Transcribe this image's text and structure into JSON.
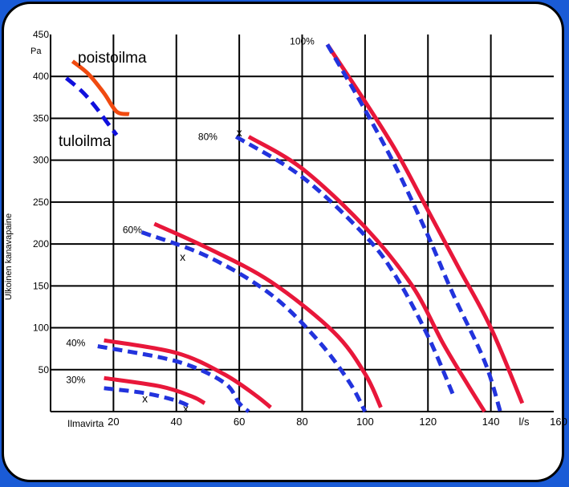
{
  "chart_data": {
    "type": "line",
    "ylabel": "Ulkoinen kanavapaine",
    "yunit": "Pa",
    "xlabel": "Ilmavirta",
    "xunit": "l/s",
    "xlim": [
      0,
      160
    ],
    "ylim": [
      0,
      450
    ],
    "xticks": [
      20,
      40,
      60,
      80,
      100,
      120,
      140,
      160
    ],
    "yticks": [
      50,
      100,
      150,
      200,
      250,
      300,
      350,
      400,
      450
    ],
    "grid": true,
    "colors": {
      "poistoilma": "#e8173a",
      "tuloilma": "#2233dd",
      "legend_poistoilma": "#f04a10",
      "legend_tuloilma": "#1010dd"
    },
    "legend": [
      {
        "label": "poistoilma",
        "color": "#f04a10",
        "style": "solid"
      },
      {
        "label": "tuloilma",
        "color": "#1010dd",
        "style": "dashed"
      }
    ],
    "legend_lines": [
      {
        "label": "poistoilma",
        "points": [
          [
            7,
            418
          ],
          [
            12,
            403
          ],
          [
            17,
            380
          ],
          [
            21,
            358
          ],
          [
            25,
            355
          ]
        ],
        "style": "solid"
      },
      {
        "label": "tuloilma",
        "points": [
          [
            5,
            398
          ],
          [
            10,
            382
          ],
          [
            14,
            365
          ],
          [
            18,
            345
          ],
          [
            21,
            330
          ]
        ],
        "style": "dashed"
      }
    ],
    "series": [
      {
        "label": "100%",
        "fan": "poistoilma",
        "style": "solid",
        "points": [
          [
            88,
            438
          ],
          [
            100,
            370
          ],
          [
            110,
            310
          ],
          [
            120,
            240
          ],
          [
            130,
            170
          ],
          [
            140,
            100
          ],
          [
            150,
            10
          ]
        ]
      },
      {
        "label": "100%",
        "fan": "tuloilma",
        "style": "dashed",
        "points": [
          [
            88,
            438
          ],
          [
            100,
            360
          ],
          [
            110,
            290
          ],
          [
            120,
            210
          ],
          [
            128,
            140
          ],
          [
            138,
            60
          ],
          [
            143,
            0
          ]
        ]
      },
      {
        "label": "80%",
        "fan": "poistoilma",
        "style": "solid",
        "points": [
          [
            63,
            328
          ],
          [
            80,
            290
          ],
          [
            100,
            220
          ],
          [
            115,
            150
          ],
          [
            125,
            80
          ],
          [
            133,
            30
          ],
          [
            138,
            0
          ]
        ]
      },
      {
        "label": "80%",
        "fan": "tuloilma",
        "style": "dashed",
        "points": [
          [
            59,
            328
          ],
          [
            80,
            280
          ],
          [
            100,
            210
          ],
          [
            110,
            160
          ],
          [
            120,
            90
          ],
          [
            128,
            20
          ]
        ]
      },
      {
        "label": "60%",
        "fan": "poistoilma",
        "style": "solid",
        "points": [
          [
            33,
            224
          ],
          [
            50,
            195
          ],
          [
            70,
            155
          ],
          [
            90,
            95
          ],
          [
            100,
            45
          ],
          [
            105,
            5
          ]
        ]
      },
      {
        "label": "60%",
        "fan": "tuloilma",
        "style": "dashed",
        "points": [
          [
            29,
            214
          ],
          [
            50,
            185
          ],
          [
            70,
            140
          ],
          [
            85,
            85
          ],
          [
            95,
            35
          ],
          [
            100,
            0
          ]
        ]
      },
      {
        "label": "40%",
        "fan": "poistoilma",
        "style": "solid",
        "points": [
          [
            17,
            85
          ],
          [
            40,
            70
          ],
          [
            55,
            45
          ],
          [
            65,
            20
          ],
          [
            70,
            5
          ]
        ]
      },
      {
        "label": "40%",
        "fan": "tuloilma",
        "style": "dashed",
        "points": [
          [
            15,
            78
          ],
          [
            40,
            60
          ],
          [
            55,
            35
          ],
          [
            60,
            10
          ],
          [
            63,
            0
          ]
        ]
      },
      {
        "label": "30%",
        "fan": "poistoilma",
        "style": "solid",
        "points": [
          [
            17,
            40
          ],
          [
            35,
            30
          ],
          [
            45,
            18
          ],
          [
            49,
            10
          ]
        ]
      },
      {
        "label": "30%",
        "fan": "tuloilma",
        "style": "dashed",
        "points": [
          [
            17,
            28
          ],
          [
            30,
            22
          ],
          [
            40,
            13
          ],
          [
            45,
            5
          ]
        ]
      }
    ],
    "annotations": [
      {
        "text": "100%",
        "x": 80,
        "y": 442
      },
      {
        "text": "80%",
        "x": 50,
        "y": 328
      },
      {
        "text": "60%",
        "x": 26,
        "y": 217
      },
      {
        "text": "40%",
        "x": 8,
        "y": 82
      },
      {
        "text": "30%",
        "x": 8,
        "y": 38
      },
      {
        "text": "x",
        "x": 60,
        "y": 332
      },
      {
        "text": "x",
        "x": 42,
        "y": 184
      },
      {
        "text": "x",
        "x": 30,
        "y": 15
      },
      {
        "text": "x",
        "x": 43,
        "y": 3
      }
    ]
  }
}
